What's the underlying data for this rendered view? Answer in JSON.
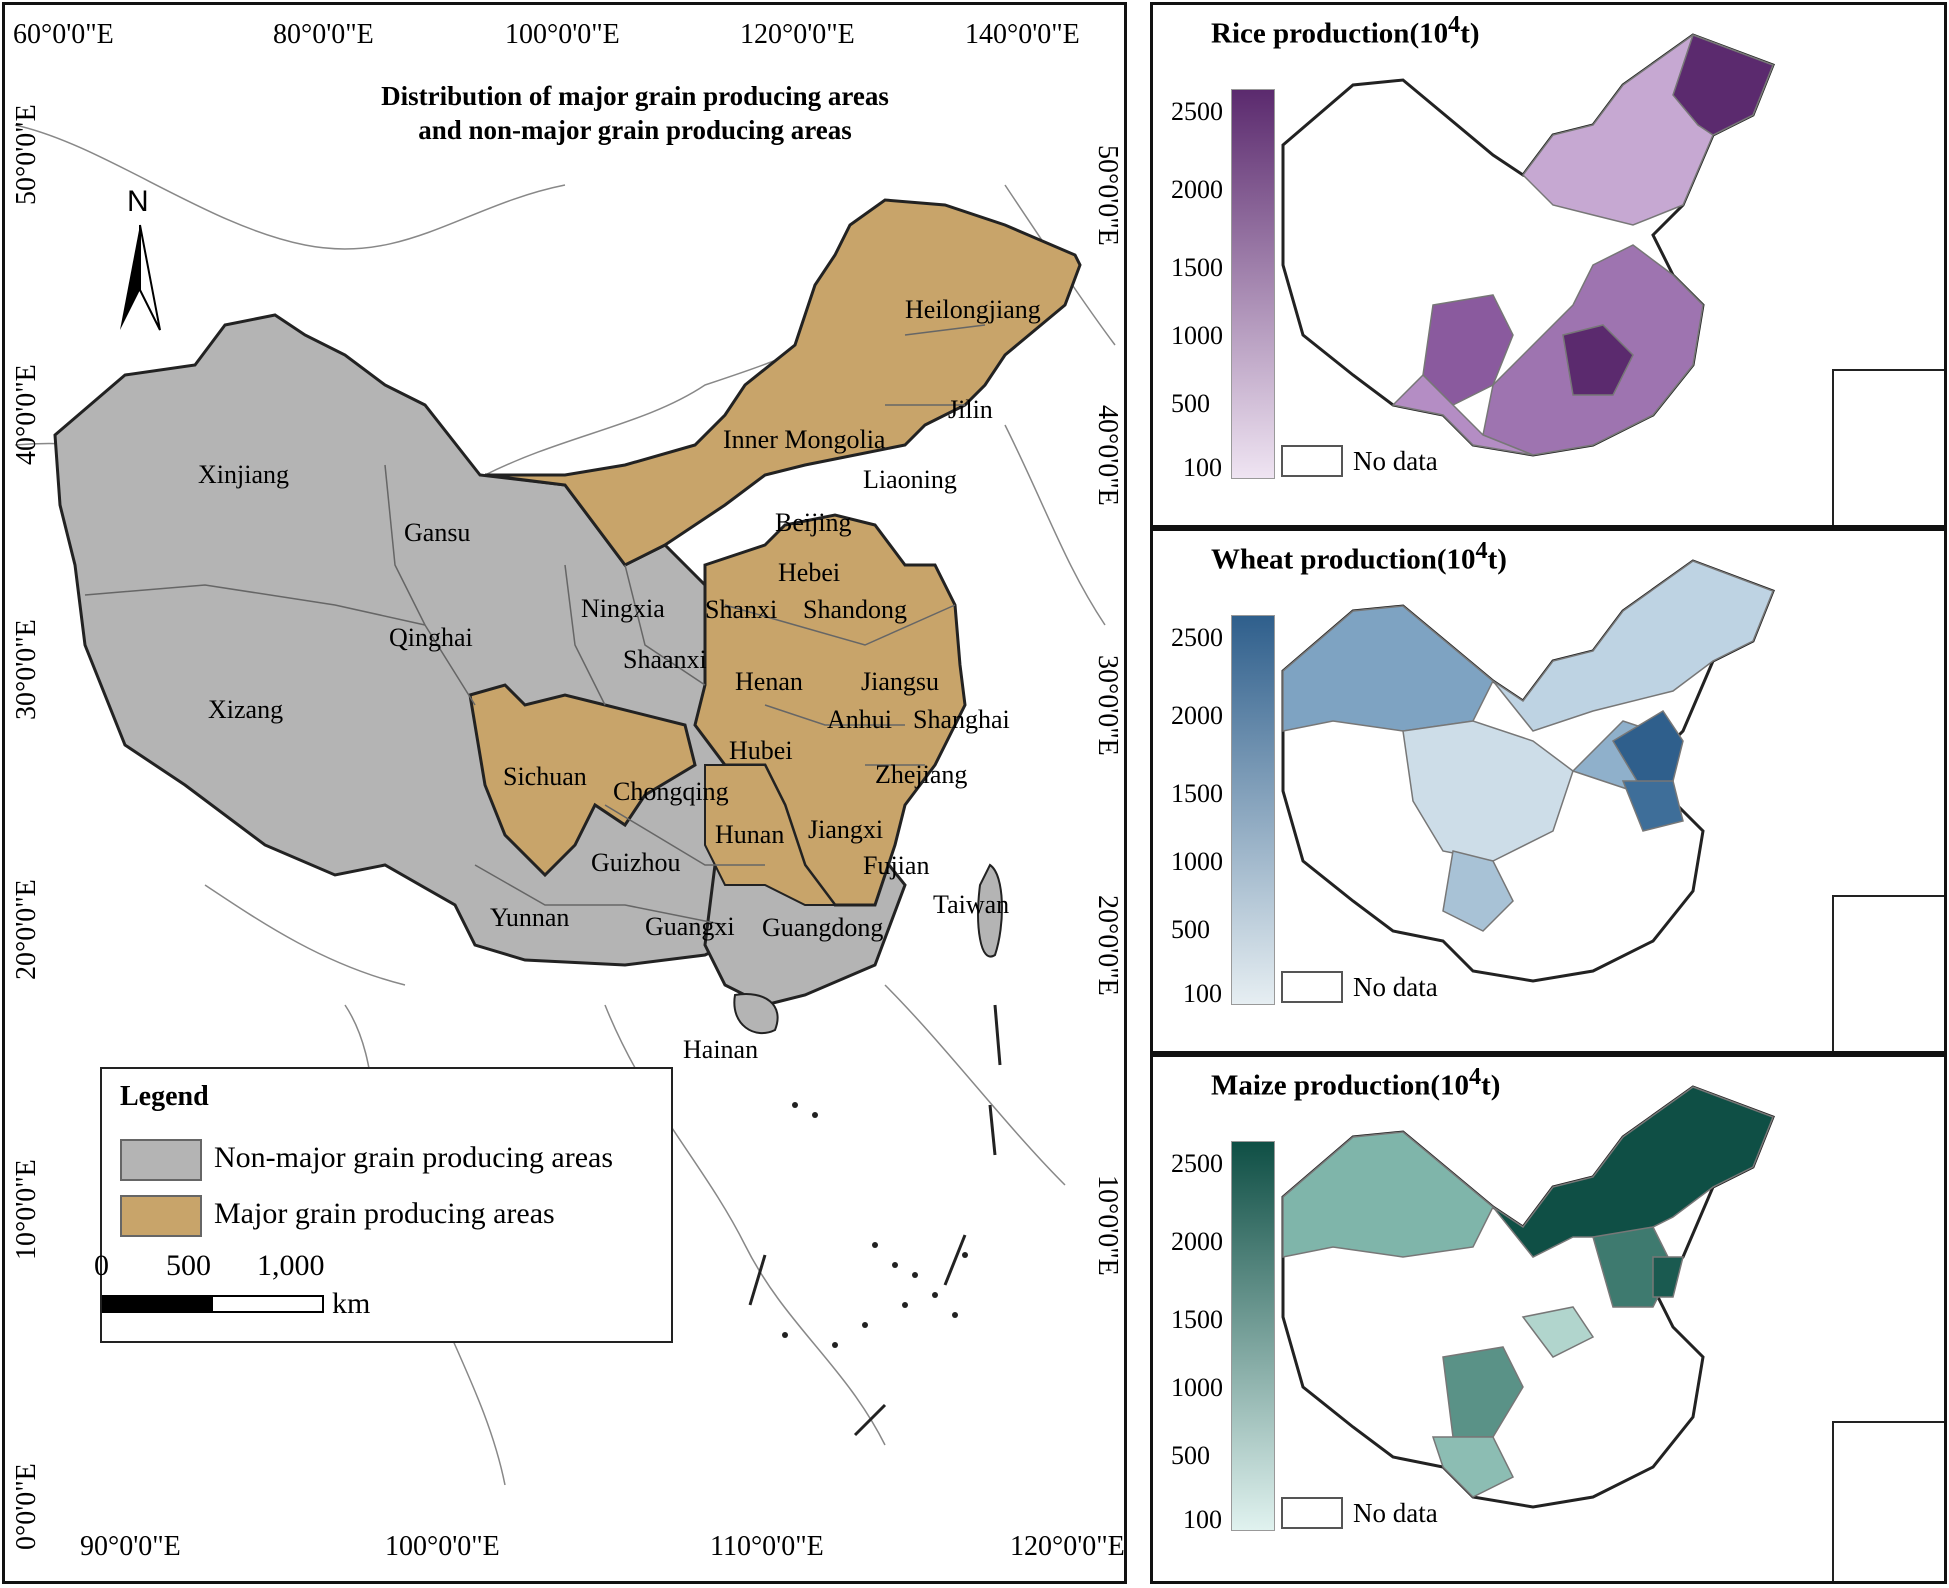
{
  "main_map": {
    "title_line1": "Distribution of major grain producing areas",
    "title_line2": "and non-major grain producing areas",
    "north_label": "N",
    "top_ticks": [
      "60°0'0\"E",
      "80°0'0\"E",
      "100°0'0\"E",
      "120°0'0\"E",
      "140°0'0\"E"
    ],
    "bottom_ticks": [
      "90°0'0\"E",
      "100°0'0\"E",
      "110°0'0\"E",
      "120°0'0\"E"
    ],
    "left_ticks": [
      "50°0'0\"E",
      "40°0'0\"E",
      "30°0'0\"E",
      "20°0'0\"E",
      "10°0'0\"E",
      "0°0'0\"E"
    ],
    "right_ticks": [
      "50°0'0\"E",
      "40°0'0\"E",
      "30°0'0\"E",
      "20°0'0\"E",
      "10°0'0\"E"
    ],
    "provinces": {
      "heilongjiang": "Heilongjiang",
      "jilin": "Jilin",
      "inner_mongolia": "Inner Mongolia",
      "liaoning": "Liaoning",
      "xinjiang": "Xinjiang",
      "gansu": "Gansu",
      "beijing": "Beijing",
      "hebei": "Hebei",
      "ningxia": "Ningxia",
      "shanxi": "Shanxi",
      "shandong": "Shandong",
      "qinghai": "Qinghai",
      "shaanxi": "Shaanxi",
      "henan": "Henan",
      "jiangsu": "Jiangsu",
      "xizang": "Xizang",
      "anhui": "Anhui",
      "shanghai": "Shanghai",
      "sichuan": "Sichuan",
      "hubei": "Hubei",
      "chongqing": "Chongqing",
      "zhejiang": "Zhejiang",
      "hunan": "Hunan",
      "jiangxi": "Jiangxi",
      "guizhou": "Guizhou",
      "fujian": "Fujian",
      "taiwan": "Taiwan",
      "yunnan": "Yunnan",
      "guangxi": "Guangxi",
      "guangdong": "Guangdong",
      "hainan": "Hainan"
    },
    "legend": {
      "title": "Legend",
      "non_major": "Non-major grain producing areas",
      "major": "Major grain producing areas",
      "scale_0": "0",
      "scale_500": "500",
      "scale_1000": "1,000",
      "scale_unit": "km"
    },
    "colors": {
      "non_major": "#b4b4b4",
      "major": "#c8a46a"
    }
  },
  "panels": {
    "rice": {
      "title": "Rice production(10",
      "title_sup": "4",
      "title_end": "t)",
      "color_max": "#5b2a6e",
      "color_min": "#efe4f2"
    },
    "wheat": {
      "title": "Wheat production(10",
      "title_sup": "4",
      "title_end": "t)",
      "color_max": "#2f5f8c",
      "color_min": "#e6eef2"
    },
    "maize": {
      "title": "Maize production(10",
      "title_sup": "4",
      "title_end": "t)",
      "color_max": "#0f4f45",
      "color_min": "#e0f2ef"
    },
    "colorbar_ticks": [
      "2500",
      "2000",
      "1500",
      "1000",
      "500",
      "100"
    ],
    "no_data_label": "No data"
  }
}
